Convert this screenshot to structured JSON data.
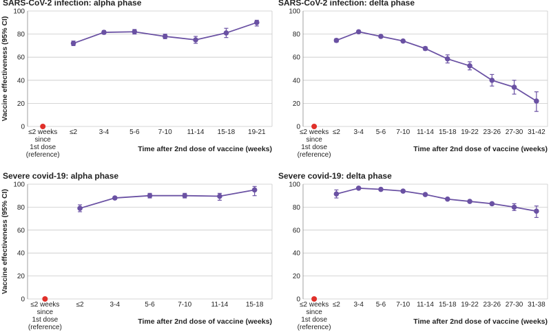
{
  "chart_data": [
    {
      "type": "line",
      "title": "SARS-CoV-2 infection: alpha phase",
      "ylabel": "Vaccine effectiveness (95% CI)",
      "xlabel": "Time after 2nd dose of vaccine (weeks)",
      "reference": {
        "label_lines": [
          "≤2 weeks",
          "since",
          "1st dose",
          "(reference)"
        ],
        "value": 0,
        "color": "#e0302a"
      },
      "categories": [
        "≤2",
        "3-4",
        "5-6",
        "7-10",
        "11-14",
        "15-18",
        "19-21"
      ],
      "values": [
        72,
        81.5,
        82,
        78,
        75,
        81,
        90
      ],
      "ci_low": [
        70,
        80,
        80,
        76,
        72,
        77,
        87
      ],
      "ci_high": [
        74,
        83,
        84,
        80,
        78,
        85,
        92
      ],
      "color": "#6a51a3",
      "ylim": [
        0,
        100
      ],
      "yticks": [
        0,
        20,
        40,
        60,
        80,
        100
      ],
      "grid": true
    },
    {
      "type": "line",
      "title": "SARS-CoV-2 infection: delta phase",
      "xlabel": "Time after 2nd dose of vaccine (weeks)",
      "reference": {
        "label_lines": [
          "≤2 weeks",
          "since",
          "1st dose",
          "(reference)"
        ],
        "value": 0,
        "color": "#e0302a"
      },
      "categories": [
        "≤2",
        "3-4",
        "5-6",
        "7-10",
        "11-14",
        "15-18",
        "19-22",
        "23-26",
        "27-30",
        "31-42"
      ],
      "values": [
        74.5,
        82,
        78,
        74,
        67.5,
        58.5,
        52.5,
        40,
        34,
        22
      ],
      "ci_low": [
        73,
        81,
        77,
        73,
        66,
        55,
        49,
        35,
        28,
        13
      ],
      "ci_high": [
        76,
        83,
        79,
        75,
        69,
        62,
        56,
        45,
        40,
        30
      ],
      "color": "#6a51a3",
      "ylim": [
        0,
        100
      ],
      "yticks": [
        0,
        20,
        40,
        60,
        80,
        100
      ],
      "grid": true
    },
    {
      "type": "line",
      "title": "Severe covid-19: alpha phase",
      "ylabel": "Vaccine effectiveness (95% CI)",
      "xlabel": "Time after 2nd dose of vaccine (weeks)",
      "reference": {
        "label_lines": [
          "≤2 weeks",
          "since",
          "1st dose",
          "(reference)"
        ],
        "value": 0,
        "color": "#e0302a"
      },
      "categories": [
        "≤2",
        "3-4",
        "5-6",
        "7-10",
        "11-14",
        "15-18"
      ],
      "values": [
        79,
        88,
        90,
        90,
        89.5,
        95
      ],
      "ci_low": [
        76,
        87,
        88,
        88,
        86,
        90
      ],
      "ci_high": [
        82,
        89,
        92,
        92,
        92,
        98
      ],
      "color": "#6a51a3",
      "ylim": [
        0,
        100
      ],
      "yticks": [
        0,
        20,
        40,
        60,
        80,
        100
      ],
      "grid": true
    },
    {
      "type": "line",
      "title": "Severe covid-19: delta phase",
      "xlabel": "Time after 2nd dose of vaccine (weeks)",
      "reference": {
        "label_lines": [
          "≤2 weeks",
          "since",
          "1st dose",
          "(reference)"
        ],
        "value": 0,
        "color": "#e0302a"
      },
      "categories": [
        "≤2",
        "3-4",
        "5-6",
        "7-10",
        "11-14",
        "15-18",
        "19-22",
        "23-26",
        "27-30",
        "31-38"
      ],
      "values": [
        91.5,
        96.5,
        95.5,
        94,
        91,
        87,
        85,
        83,
        80,
        76.5
      ],
      "ci_low": [
        88,
        96,
        95,
        93,
        90,
        86,
        84,
        82,
        77,
        71
      ],
      "ci_high": [
        95,
        97,
        96,
        95,
        92,
        88,
        86,
        84,
        83,
        81
      ],
      "color": "#6a51a3",
      "ylim": [
        0,
        100
      ],
      "yticks": [
        0,
        20,
        40,
        60,
        80,
        100
      ],
      "grid": true
    }
  ]
}
